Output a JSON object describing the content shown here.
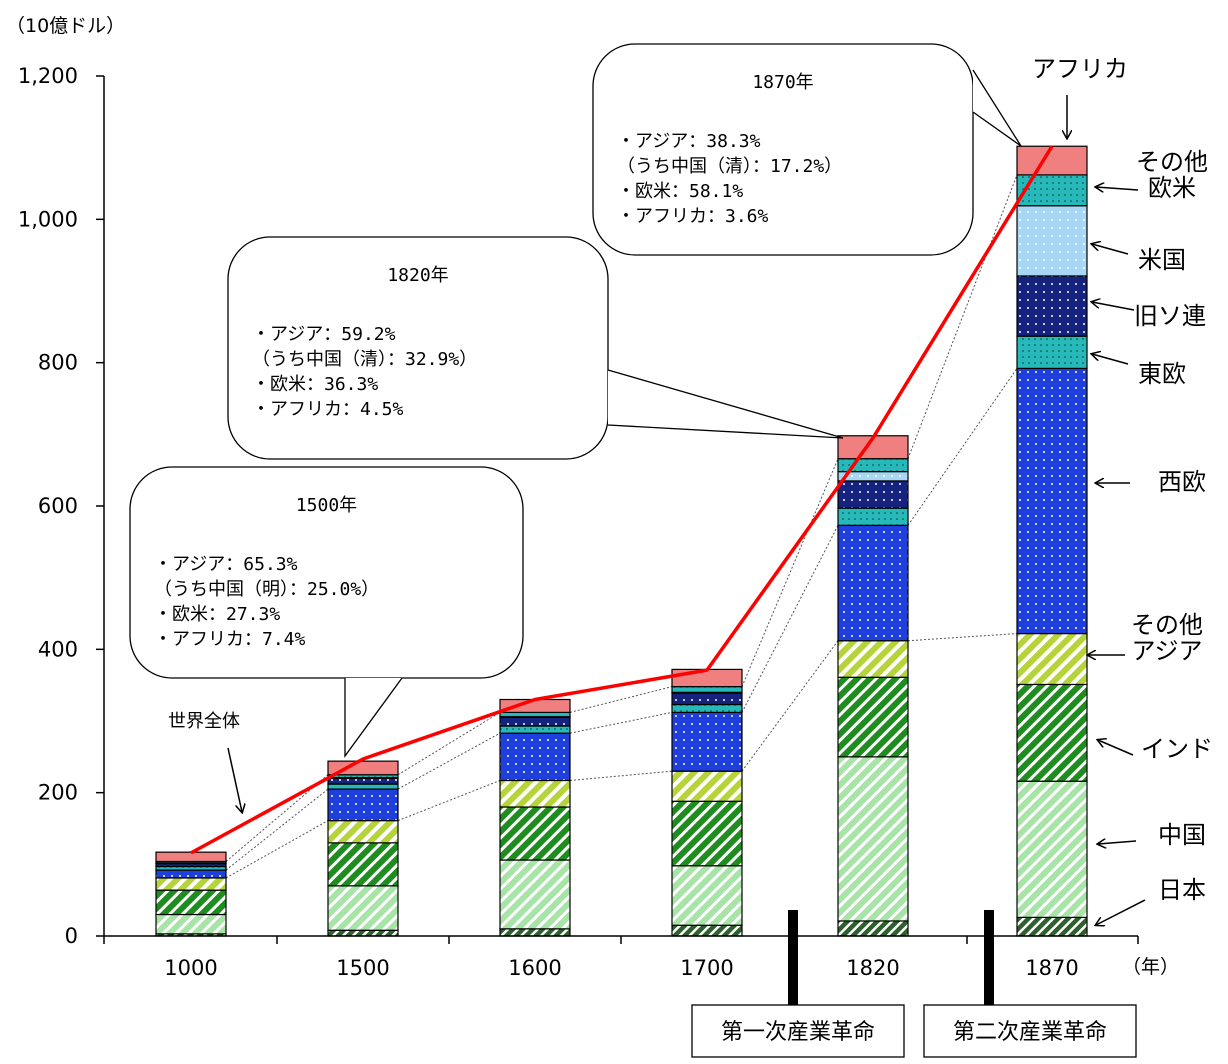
{
  "chart_data": {
    "type": "bar",
    "stacked": true,
    "unit_label": "（10億ドル）",
    "x_unit_label": "（年）",
    "categories": [
      "1000",
      "1500",
      "1600",
      "1700",
      "1820",
      "1870"
    ],
    "ylim": [
      0,
      1200
    ],
    "yticks": [
      0,
      200,
      400,
      600,
      800,
      1000,
      1200
    ],
    "ytick_labels": [
      "0",
      "200",
      "400",
      "600",
      "800",
      "1,000",
      "1,200"
    ],
    "series": [
      {
        "name": "日本",
        "color": "#2f5f2f",
        "values": [
          3,
          8,
          10,
          15,
          21,
          26
        ]
      },
      {
        "name": "中国",
        "color": "#a8e4a8",
        "values": [
          27,
          62,
          96,
          83,
          229,
          190
        ]
      },
      {
        "name": "インド",
        "color": "#1f8c1f",
        "values": [
          34,
          60,
          74,
          90,
          111,
          135
        ]
      },
      {
        "name": "その他アジア",
        "color": "#b5d43a",
        "values": [
          17,
          31,
          37,
          42,
          51,
          71
        ]
      },
      {
        "name": "西欧",
        "color": "#1f3fdc",
        "values": [
          11,
          44,
          66,
          82,
          161,
          370
        ]
      },
      {
        "name": "東欧",
        "color": "#27b9b9",
        "values": [
          5,
          7,
          10,
          11,
          24,
          45
        ]
      },
      {
        "name": "旧ソ連",
        "color": "#16237e",
        "values": [
          4,
          8,
          12,
          16,
          38,
          84
        ]
      },
      {
        "name": "米国",
        "color": "#a8d6f5",
        "values": [
          1,
          1,
          1,
          1,
          13,
          98
        ]
      },
      {
        "name": "その他欧米",
        "color": "#27b9b9",
        "values": [
          2,
          4,
          6,
          8,
          18,
          43
        ]
      },
      {
        "name": "アフリカ",
        "color": "#f08080",
        "values": [
          13,
          19,
          18,
          24,
          32,
          40
        ]
      }
    ],
    "world_total": {
      "name": "世界全体",
      "color": "#ff0000",
      "values": [
        116,
        247,
        330,
        371,
        695,
        1102
      ]
    },
    "series_labels": [
      {
        "text": "アフリカ",
        "series": "アフリカ"
      },
      {
        "text": "その他",
        "text2": "欧米",
        "series": "その他欧米"
      },
      {
        "text": "米国",
        "series": "米国"
      },
      {
        "text": "旧ソ連",
        "series": "旧ソ連"
      },
      {
        "text": "東欧",
        "series": "東欧"
      },
      {
        "text": "西欧",
        "series": "西欧"
      },
      {
        "text": "その他",
        "text2": "アジア",
        "series": "その他アジア"
      },
      {
        "text": "インド",
        "series": "インド"
      },
      {
        "text": "中国",
        "series": "中国"
      },
      {
        "text": "日本",
        "series": "日本"
      }
    ],
    "annotations": [
      {
        "year": "1500年",
        "lines": [
          "・アジア：65.3%",
          "（うち中国（明）：25.0%）",
          "・欧米：27.3%",
          "・アフリカ：7.4%"
        ]
      },
      {
        "year": "1820年",
        "lines": [
          "・アジア：59.2%",
          "（うち中国（清）：32.9%）",
          "・欧米：36.3%",
          "・アフリカ：4.5%"
        ]
      },
      {
        "year": "1870年",
        "lines": [
          "・アジア：38.3%",
          "（うち中国（清）：17.2%）",
          "・欧米：58.1%",
          "・アフリカ：3.6%"
        ]
      }
    ],
    "events": [
      {
        "label": "第一次産業革命",
        "between": [
          "1700",
          "1820"
        ]
      },
      {
        "label": "第二次産業革命",
        "between": [
          "1820",
          "1870"
        ]
      }
    ]
  }
}
